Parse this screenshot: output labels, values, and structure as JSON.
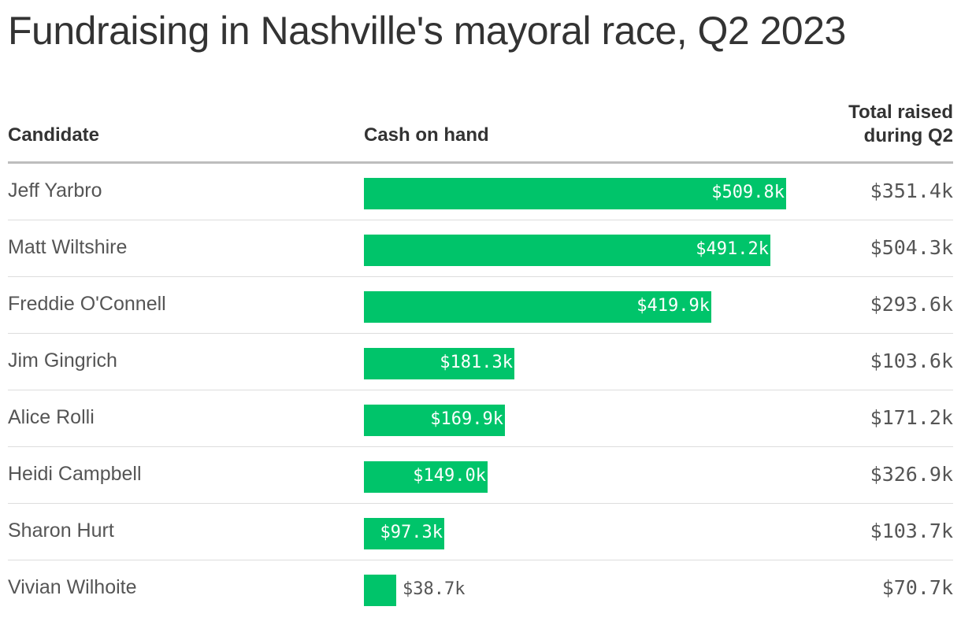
{
  "title": "Fundraising in Nashville's mayoral race, Q2 2023",
  "headers": {
    "candidate": "Candidate",
    "cash": "Cash on hand",
    "total_line1": "Total raised",
    "total_line2": "during Q2"
  },
  "colors": {
    "bar": "#00c46a",
    "text": "#333333"
  },
  "chart_data": {
    "type": "bar",
    "orientation": "horizontal",
    "title": "Fundraising in Nashville's mayoral race, Q2 2023",
    "categories": [
      "Jeff Yarbro",
      "Matt Wiltshire",
      "Freddie O'Connell",
      "Jim Gingrich",
      "Alice Rolli",
      "Heidi Campbell",
      "Sharon Hurt",
      "Vivian Wilhoite"
    ],
    "series": [
      {
        "name": "Cash on hand",
        "values": [
          509.8,
          491.2,
          419.9,
          181.3,
          169.9,
          149.0,
          97.3,
          38.7
        ],
        "labels": [
          "$509.8k",
          "$491.2k",
          "$419.9k",
          "$181.3k",
          "$169.9k",
          "$149.0k",
          "$97.3k",
          "$38.7k"
        ]
      },
      {
        "name": "Total raised during Q2",
        "values": [
          351.4,
          504.3,
          293.6,
          103.6,
          171.2,
          326.9,
          103.7,
          70.7
        ],
        "labels": [
          "$351.4k",
          "$504.3k",
          "$293.6k",
          "$103.6k",
          "$171.2k",
          "$326.9k",
          "$103.7k",
          "$70.7k"
        ]
      }
    ],
    "xlim": [
      0,
      509.8
    ]
  }
}
